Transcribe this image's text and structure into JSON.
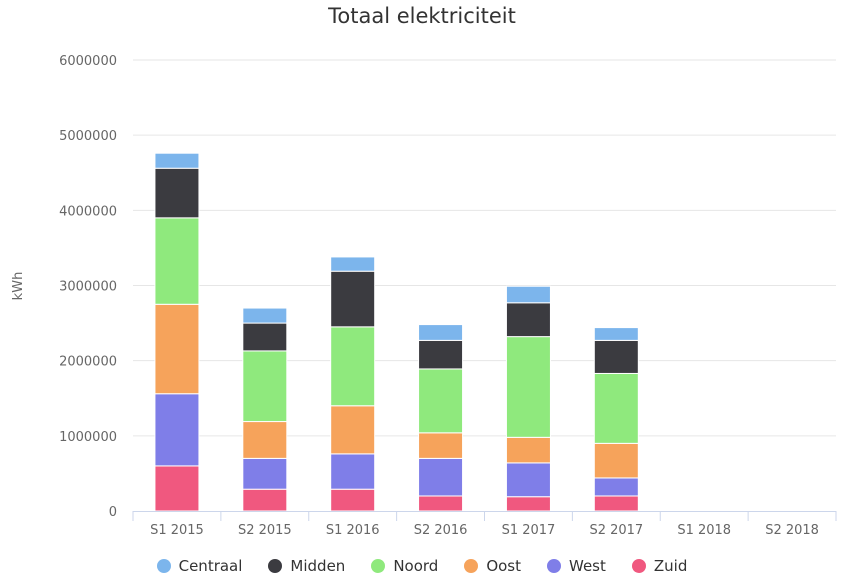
{
  "chart_data": {
    "type": "bar",
    "stacked": true,
    "title": "Totaal elektriciteit",
    "xlabel": "",
    "ylabel": "kWh",
    "ylim": [
      0,
      6000000
    ],
    "yticks": [
      "0",
      "1000000",
      "2000000",
      "3000000",
      "4000000",
      "5000000",
      "6000000"
    ],
    "categories": [
      "S1 2015",
      "S2 2015",
      "S1 2016",
      "S2 2016",
      "S1 2017",
      "S2 2017",
      "S1 2018",
      "S2 2018"
    ],
    "grid": true,
    "legend_position": "bottom",
    "series": [
      {
        "name": "Zuid",
        "color": "#f0587f",
        "values": [
          600000,
          290000,
          290000,
          200000,
          190000,
          200000,
          0,
          0
        ]
      },
      {
        "name": "West",
        "color": "#7f7ee8",
        "values": [
          960000,
          410000,
          470000,
          500000,
          450000,
          240000,
          0,
          0
        ]
      },
      {
        "name": "Oost",
        "color": "#f6a35b",
        "values": [
          1190000,
          490000,
          640000,
          340000,
          340000,
          460000,
          0,
          0
        ]
      },
      {
        "name": "Noord",
        "color": "#8fe97d",
        "values": [
          1150000,
          940000,
          1050000,
          850000,
          1340000,
          930000,
          0,
          0
        ]
      },
      {
        "name": "Midden",
        "color": "#3b3b40",
        "values": [
          660000,
          370000,
          740000,
          380000,
          450000,
          440000,
          0,
          0
        ]
      },
      {
        "name": "Centraal",
        "color": "#7cb5ec",
        "values": [
          200000,
          200000,
          190000,
          210000,
          220000,
          170000,
          0,
          0
        ]
      }
    ],
    "legend_order": [
      "Centraal",
      "Midden",
      "Noord",
      "Oost",
      "West",
      "Zuid"
    ]
  }
}
